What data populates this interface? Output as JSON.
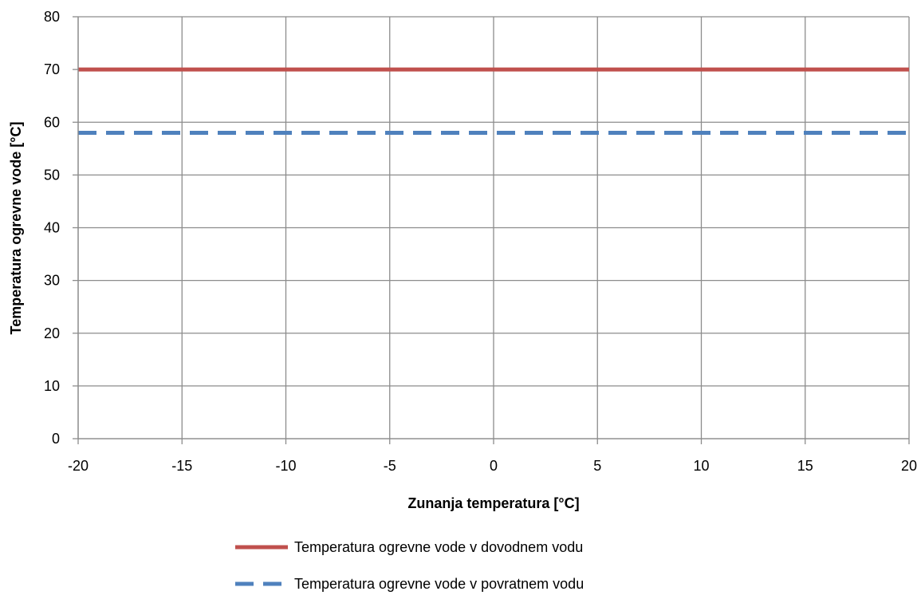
{
  "chart_data": {
    "type": "line",
    "x_axis": {
      "label": "Zunanja temperatura [°C]",
      "range": [
        -20,
        20
      ],
      "ticks": [
        -20,
        -15,
        -10,
        -5,
        0,
        5,
        10,
        15,
        20
      ]
    },
    "y_axis": {
      "label": "Temperatura ogrevne vode [°C]",
      "range": [
        0,
        80
      ],
      "ticks": [
        0,
        10,
        20,
        30,
        40,
        50,
        60,
        70,
        80
      ]
    },
    "grid": true,
    "legend_position": "bottom",
    "series": [
      {
        "name": "Temperatura ogrevne vode v dovodnem vodu",
        "color": "#c0504d",
        "style": "solid",
        "x": [
          -20,
          20
        ],
        "y": [
          70,
          70
        ]
      },
      {
        "name": "Temperatura ogrevne vode v povratnem vodu",
        "color": "#4f81bd",
        "style": "dashed",
        "x": [
          -20,
          20
        ],
        "y": [
          58,
          58
        ]
      }
    ]
  }
}
